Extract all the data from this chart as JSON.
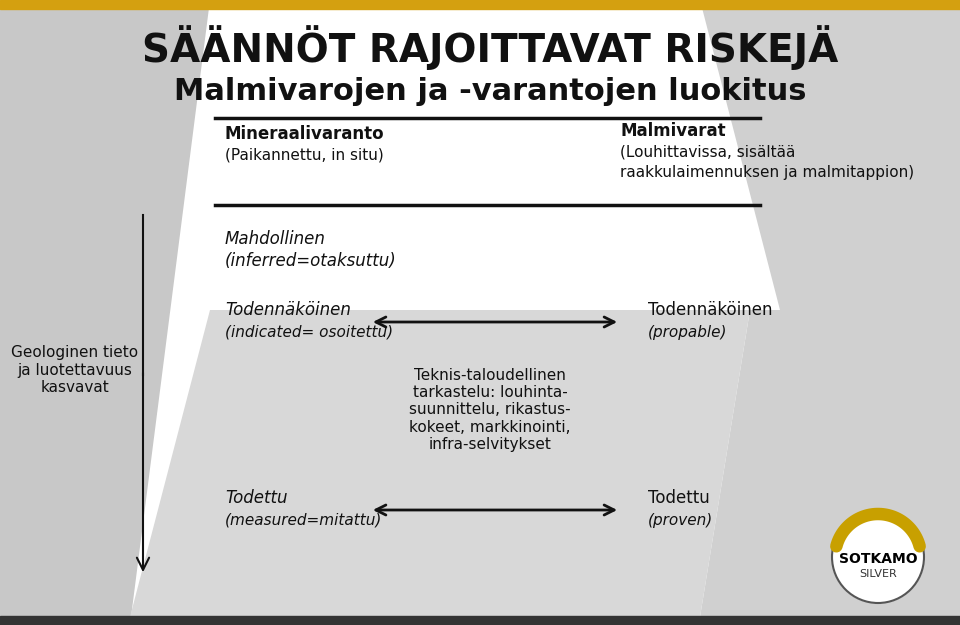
{
  "title_line1": "SÄÄNNÖT RAJOITTAVAT RISKEJÄ",
  "title_line2": "Malmivarojen ja -varantojen luokitus",
  "bg_color": "#ffffff",
  "header_line_color": "#111111",
  "header_left_bold": "Mineraalivaranto",
  "header_left_normal": "(Paikannettu, in situ)",
  "header_right_bold": "Malmivarat",
  "header_right_normal1": "(Louhittavissa, sisältää",
  "header_right_normal2": "raakkulaimennuksen ja malmitappion)",
  "left_label_line1": "Geologinen tieto",
  "left_label_line2": "ja luotettavuus",
  "left_label_line3": "kasvavat",
  "row1_left1": "Mahdollinen",
  "row1_left2": "(inferred=otaksuttu)",
  "row2_left1": "Todennäköinen",
  "row2_left2": "(indicated= osoitettu)",
  "row2_right1": "Todennäköinen",
  "row2_right2": "(propable)",
  "row3_left1": "Todettu",
  "row3_left2": "(measured=mitattu)",
  "row3_right1": "Todettu",
  "row3_right2": "(proven)",
  "center_text": "Teknis-taloudellinen\ntarkastelu: louhinta-\nsuunnittelu, rikastus-\nkokeet, markkinointi,\ninfra-selvitykset",
  "arrow_color": "#111111",
  "top_bar_color": "#D4A010",
  "bottom_bar_color": "#333333",
  "text_color": "#111111",
  "gray_left": "#c8c8c8",
  "gray_right_top": "#d5d5d5",
  "gray_right_bottom": "#d0d0d0"
}
